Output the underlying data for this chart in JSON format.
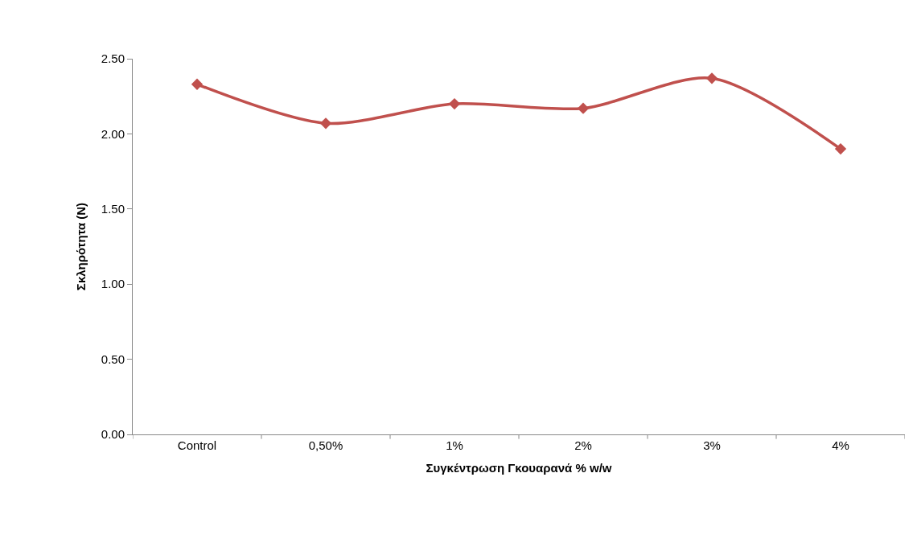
{
  "chart_data": {
    "type": "line",
    "xlabel": "Συγκέντρωση Γκουαρανά % w/w",
    "ylabel": "Σκληρότητα (N)",
    "categories": [
      "Control",
      "0,50%",
      "1%",
      "2%",
      "3%",
      "4%"
    ],
    "series": [
      {
        "color": "#c0504d",
        "values": [
          2.33,
          2.07,
          2.2,
          2.17,
          2.37,
          1.9
        ]
      }
    ],
    "ylim": [
      0,
      2.5
    ],
    "yticks": [
      {
        "value": 0,
        "label": "0.00"
      },
      {
        "value": 0.5,
        "label": "0.50"
      },
      {
        "value": 1,
        "label": "1.00"
      },
      {
        "value": 1.5,
        "label": "1.50"
      },
      {
        "value": 2,
        "label": "2.00"
      },
      {
        "value": 2.5,
        "label": "2.50"
      }
    ],
    "marker": "diamond",
    "line_style": "solid"
  }
}
